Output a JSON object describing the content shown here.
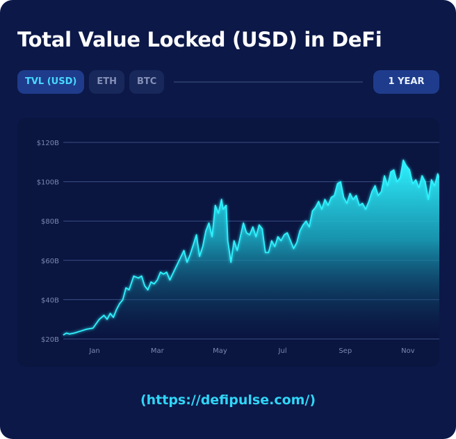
{
  "title": "Total Value Locked (USD) in DeFi",
  "tabs": [
    {
      "label": "TVL (USD)",
      "active": true
    },
    {
      "label": "ETH",
      "active": false
    },
    {
      "label": "BTC",
      "active": false
    }
  ],
  "range_button": "1 YEAR",
  "source": "(https://defipulse.com/)",
  "colors": {
    "background": "#0c1848",
    "panel": "#0a1540",
    "line": "#2ff3ff",
    "accent": "#48d8ff",
    "active_tab_bg": "#1f3c8c"
  },
  "chart_data": {
    "type": "area",
    "title": "",
    "xlabel": "",
    "ylabel": "",
    "ylim": [
      20,
      120
    ],
    "xlim": [
      0,
      12
    ],
    "y_ticks": [
      20,
      40,
      60,
      80,
      100,
      120
    ],
    "y_tick_labels": [
      "$20B",
      "$40B",
      "$60B",
      "$80B",
      "$100B",
      "$120B"
    ],
    "x_ticks": [
      1,
      3,
      5,
      7,
      9,
      11
    ],
    "x_tick_labels": [
      "Jan",
      "Mar",
      "May",
      "Jul",
      "Sep",
      "Nov"
    ],
    "grid": true,
    "series": [
      {
        "values_unit": "USD billions",
        "x": [
          0,
          0.1,
          0.2,
          0.35,
          0.55,
          0.75,
          0.95,
          1.15,
          1.3,
          1.4,
          1.5,
          1.6,
          1.7,
          1.8,
          1.9,
          2.0,
          2.1,
          2.25,
          2.4,
          2.5,
          2.6,
          2.7,
          2.8,
          2.9,
          3.0,
          3.1,
          3.2,
          3.3,
          3.4,
          3.55,
          3.7,
          3.85,
          3.95,
          4.05,
          4.15,
          4.25,
          4.35,
          4.45,
          4.55,
          4.65,
          4.75,
          4.85,
          4.95,
          5.05,
          5.1,
          5.2,
          5.25,
          5.35,
          5.45,
          5.55,
          5.65,
          5.75,
          5.85,
          5.95,
          6.05,
          6.15,
          6.25,
          6.35,
          6.45,
          6.55,
          6.65,
          6.75,
          6.85,
          6.95,
          7.05,
          7.15,
          7.25,
          7.35,
          7.45,
          7.55,
          7.65,
          7.75,
          7.85,
          7.95,
          8.05,
          8.15,
          8.25,
          8.35,
          8.45,
          8.55,
          8.65,
          8.75,
          8.85,
          8.95,
          9.05,
          9.15,
          9.25,
          9.35,
          9.45,
          9.55,
          9.65,
          9.75,
          9.85,
          9.95,
          10.05,
          10.15,
          10.25,
          10.35,
          10.45,
          10.55,
          10.65,
          10.75,
          10.85,
          10.95,
          11.05,
          11.15,
          11.25,
          11.35,
          11.45,
          11.55,
          11.65,
          11.75,
          11.85,
          11.95,
          12.0
        ],
        "values": [
          22,
          23,
          22.5,
          23,
          24,
          25,
          25.5,
          30,
          32,
          30,
          33,
          31,
          35,
          38,
          40,
          46,
          45,
          52,
          51,
          52,
          47,
          45,
          49,
          48,
          50,
          54,
          53,
          54,
          50,
          55,
          60,
          65,
          59,
          63,
          68,
          73,
          62,
          67,
          75,
          79,
          72,
          88,
          84,
          91,
          86,
          88,
          70,
          59,
          70,
          65,
          72,
          79,
          74,
          73,
          77,
          72,
          78,
          76,
          64,
          64,
          70,
          67,
          72,
          70,
          73,
          74,
          70,
          66,
          69,
          75,
          78,
          80,
          77,
          85,
          87,
          90,
          86,
          91,
          88,
          92,
          93,
          99,
          100,
          92,
          89,
          94,
          91,
          93,
          88,
          89,
          86,
          90,
          95,
          98,
          93,
          95,
          103,
          98,
          105,
          106,
          100,
          102,
          111,
          108,
          106,
          99,
          101,
          97,
          103,
          100,
          91,
          101,
          98,
          104,
          102
        ]
      }
    ]
  }
}
